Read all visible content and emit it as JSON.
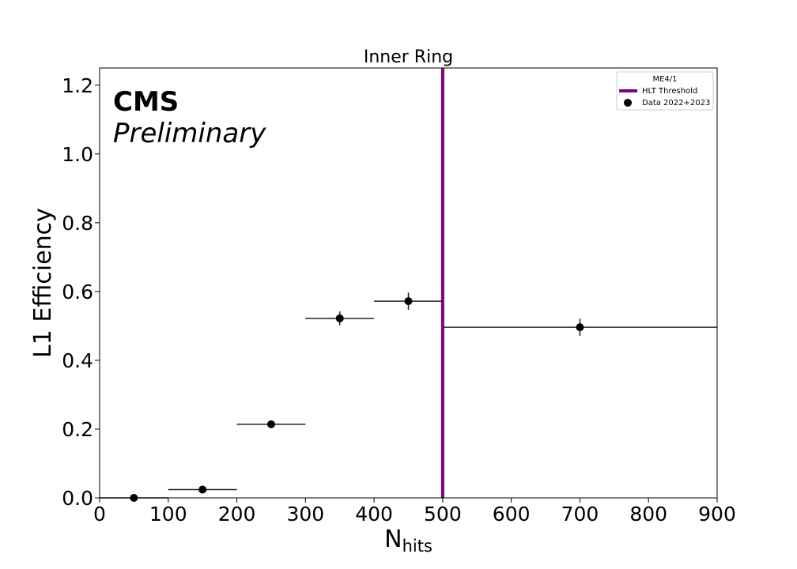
{
  "chart_data": {
    "type": "scatter",
    "title": "Inner Ring",
    "xlabel": "N",
    "xlabel_sub": "hits",
    "ylabel": "L1 Efficiency",
    "xlim": [
      0,
      900
    ],
    "ylim": [
      0,
      1.25
    ],
    "xticks": [
      0,
      100,
      200,
      300,
      400,
      500,
      600,
      700,
      800,
      900
    ],
    "yticks": [
      0.0,
      0.2,
      0.4,
      0.6,
      0.8,
      1.0,
      1.2
    ],
    "xtick_labels": [
      "0",
      "100",
      "200",
      "300",
      "400",
      "500",
      "600",
      "700",
      "800",
      "900"
    ],
    "ytick_labels": [
      "0.0",
      "0.2",
      "0.4",
      "0.6",
      "0.8",
      "1.0",
      "1.2"
    ],
    "grid": false,
    "legend_position": "top-right",
    "experiment_label": "CMS",
    "status_label": "Preliminary",
    "legend": {
      "title": "ME4/1",
      "entries": [
        {
          "label": "HLT Threshold",
          "kind": "line",
          "color": "#800080"
        },
        {
          "label": "Data 2022+2023",
          "kind": "marker",
          "color": "#000000"
        }
      ]
    },
    "threshold": {
      "name": "HLT Threshold",
      "x": 500,
      "color": "#800080"
    },
    "series": [
      {
        "name": "Data 2022+2023",
        "color": "#000000",
        "points": [
          {
            "x": 50,
            "xlo": 0,
            "xhi": 100,
            "y": 0.0,
            "yerr": 0.003
          },
          {
            "x": 150,
            "xlo": 100,
            "xhi": 200,
            "y": 0.024,
            "yerr": 0.006
          },
          {
            "x": 250,
            "xlo": 200,
            "xhi": 300,
            "y": 0.214,
            "yerr": 0.01
          },
          {
            "x": 350,
            "xlo": 300,
            "xhi": 400,
            "y": 0.522,
            "yerr": 0.02
          },
          {
            "x": 450,
            "xlo": 400,
            "xhi": 500,
            "y": 0.572,
            "yerr": 0.025
          },
          {
            "x": 700,
            "xlo": 500,
            "xhi": 900,
            "y": 0.496,
            "yerr": 0.025
          }
        ]
      }
    ]
  }
}
